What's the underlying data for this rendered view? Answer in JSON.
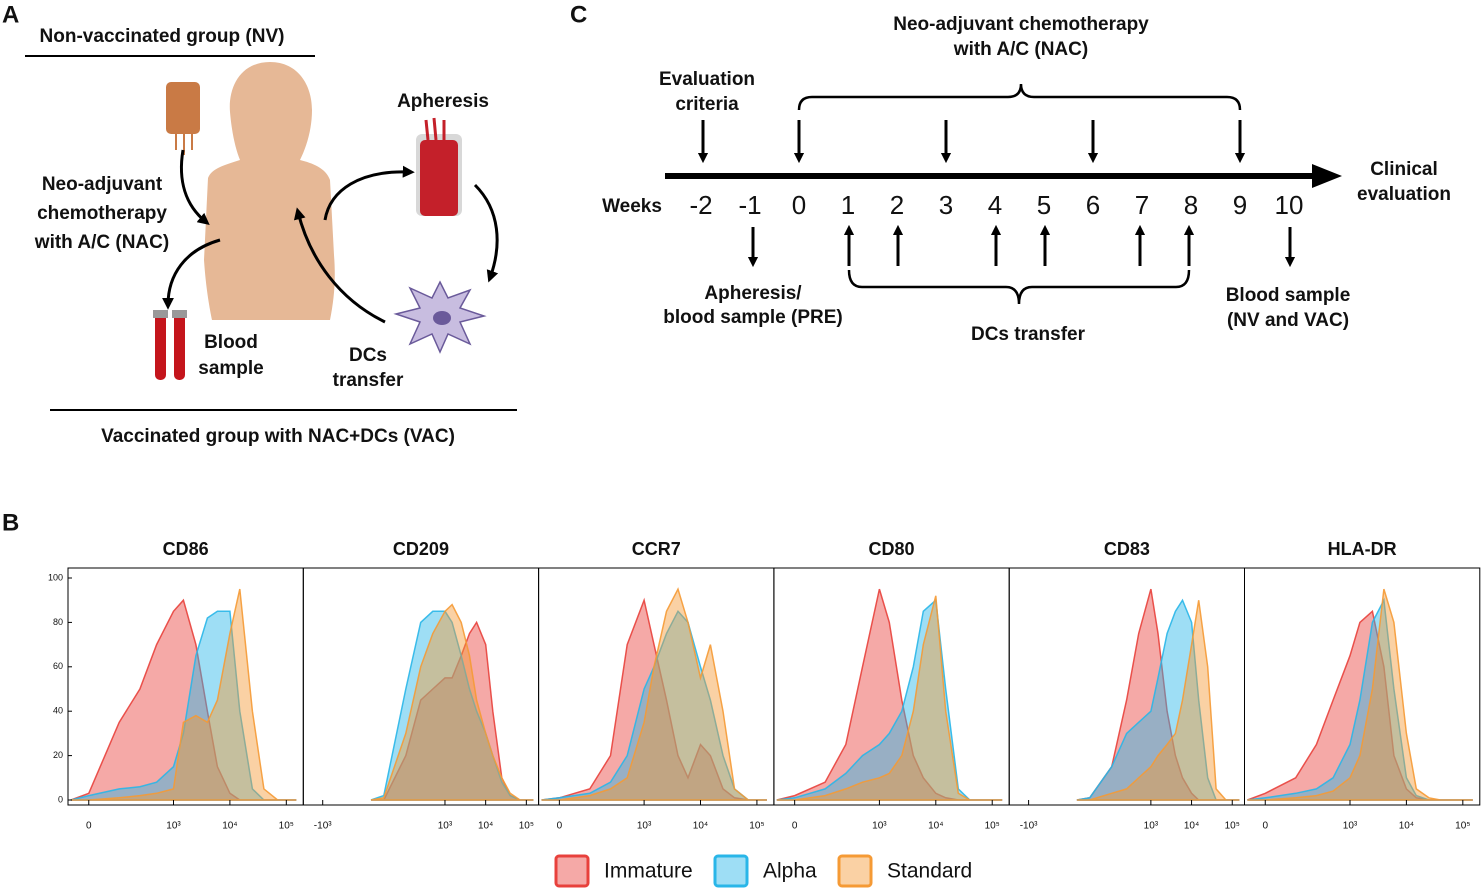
{
  "panel_a": {
    "letter": "A",
    "top_group": "Non-vaccinated group (NV)",
    "apheresis": "Apheresis",
    "nac_label": [
      "Neo-adjuvant",
      "chemotherapy",
      "with A/C (NAC)"
    ],
    "blood_label": [
      "Blood",
      "sample"
    ],
    "dcs_label": [
      "DCs",
      "transfer"
    ],
    "bottom_group": "Vaccinated group with NAC+DCs (VAC)"
  },
  "panel_c": {
    "letter": "C",
    "nac_label": [
      "Neo-adjuvant chemotherapy",
      "with A/C (NAC)"
    ],
    "evaluation_label": [
      "Evaluation",
      "criteria"
    ],
    "clinical_label": [
      "Clinical",
      "evaluation"
    ],
    "weeks_label": "Weeks",
    "weeks": [
      -2,
      -1,
      0,
      1,
      2,
      3,
      4,
      5,
      6,
      7,
      8,
      9,
      10
    ],
    "pre_label": [
      "Apheresis/",
      "blood sample (PRE)"
    ],
    "dcs_label": "DCs transfer",
    "post_label": [
      "Blood sample",
      "(NV and VAC)"
    ]
  },
  "panel_b": {
    "letter": "B"
  },
  "chart_data": [
    {
      "type": "area",
      "title": "CD86",
      "x": [
        -50,
        0,
        100,
        250,
        500,
        1000,
        1500,
        2500,
        4000,
        6000,
        10000,
        15000,
        25000,
        40000,
        70000,
        150000
      ],
      "xlim": [
        -60,
        200000
      ],
      "xticks": [
        0,
        {
          "value": 1000,
          "label": "10³"
        },
        {
          "value": 10000,
          "label": "10⁴"
        },
        {
          "value": 100000,
          "label": "10⁵"
        }
      ],
      "ylim": [
        0,
        100
      ],
      "yticks": [
        0,
        20,
        40,
        60,
        80,
        100
      ],
      "series": [
        {
          "name": "Immature",
          "color": "#e8413c",
          "values": [
            0,
            3,
            35,
            50,
            70,
            85,
            90,
            70,
            40,
            15,
            3,
            0,
            0,
            0,
            0,
            0
          ]
        },
        {
          "name": "Alpha",
          "color": "#29b6e8",
          "values": [
            0,
            2,
            5,
            6,
            8,
            15,
            30,
            65,
            82,
            85,
            85,
            40,
            5,
            0,
            0,
            0
          ]
        },
        {
          "name": "Standard",
          "color": "#f59a35",
          "values": [
            0,
            0,
            1,
            2,
            3,
            5,
            35,
            38,
            35,
            45,
            75,
            95,
            40,
            5,
            0,
            0
          ]
        }
      ]
    },
    {
      "type": "area",
      "title": "CD209",
      "x": [
        -50,
        0,
        100,
        250,
        500,
        1000,
        1500,
        2500,
        4000,
        6000,
        10000,
        15000,
        25000,
        40000,
        70000,
        150000
      ],
      "xlim": [
        -3000,
        200000
      ],
      "xticks": [
        {
          "value": -1000,
          "label": "-10³"
        },
        {
          "value": 1000,
          "label": "10³"
        },
        {
          "value": 10000,
          "label": "10⁴"
        },
        {
          "value": 100000,
          "label": "10⁵"
        }
      ],
      "ylim": [
        0,
        100
      ],
      "series": [
        {
          "name": "Immature",
          "color": "#e8413c",
          "values": [
            0,
            0,
            20,
            45,
            50,
            55,
            55,
            65,
            75,
            80,
            70,
            40,
            10,
            2,
            0,
            0
          ]
        },
        {
          "name": "Alpha",
          "color": "#29b6e8",
          "values": [
            0,
            2,
            50,
            80,
            85,
            85,
            80,
            65,
            50,
            40,
            30,
            20,
            8,
            2,
            0,
            0
          ]
        },
        {
          "name": "Standard",
          "color": "#f59a35",
          "values": [
            0,
            1,
            30,
            60,
            75,
            85,
            88,
            80,
            65,
            45,
            30,
            20,
            10,
            3,
            0,
            0
          ]
        }
      ]
    },
    {
      "type": "area",
      "title": "CCR7",
      "x": [
        -50,
        0,
        100,
        250,
        500,
        1000,
        1500,
        2500,
        4000,
        6000,
        10000,
        15000,
        25000,
        40000,
        70000,
        150000
      ],
      "xlim": [
        -60,
        200000
      ],
      "xticks": [
        0,
        {
          "value": 1000,
          "label": "10³"
        },
        {
          "value": 10000,
          "label": "10⁴"
        },
        {
          "value": 100000,
          "label": "10⁵"
        }
      ],
      "ylim": [
        0,
        100
      ],
      "series": [
        {
          "name": "Immature",
          "color": "#e8413c",
          "values": [
            0,
            1,
            5,
            20,
            70,
            90,
            70,
            45,
            20,
            10,
            25,
            20,
            5,
            1,
            0,
            0
          ]
        },
        {
          "name": "Alpha",
          "color": "#29b6e8",
          "values": [
            0,
            1,
            3,
            8,
            20,
            50,
            60,
            75,
            85,
            80,
            60,
            45,
            20,
            5,
            0,
            0
          ]
        },
        {
          "name": "Standard",
          "color": "#f59a35",
          "values": [
            0,
            0,
            2,
            5,
            10,
            35,
            60,
            85,
            95,
            80,
            55,
            70,
            40,
            5,
            0,
            0
          ]
        }
      ]
    },
    {
      "type": "area",
      "title": "CD80",
      "x": [
        -50,
        0,
        100,
        250,
        500,
        1000,
        1500,
        2500,
        4000,
        6000,
        10000,
        15000,
        25000,
        40000,
        70000,
        150000
      ],
      "xlim": [
        -60,
        200000
      ],
      "xticks": [
        0,
        {
          "value": 1000,
          "label": "10³"
        },
        {
          "value": 10000,
          "label": "10⁴"
        },
        {
          "value": 100000,
          "label": "10⁵"
        }
      ],
      "ylim": [
        0,
        100
      ],
      "series": [
        {
          "name": "Immature",
          "color": "#e8413c",
          "values": [
            0,
            2,
            8,
            25,
            60,
            95,
            80,
            45,
            20,
            10,
            3,
            1,
            0,
            0,
            0,
            0
          ]
        },
        {
          "name": "Alpha",
          "color": "#29b6e8",
          "values": [
            0,
            1,
            5,
            12,
            20,
            25,
            30,
            40,
            60,
            85,
            90,
            50,
            5,
            0,
            0,
            0
          ]
        },
        {
          "name": "Standard",
          "color": "#f59a35",
          "values": [
            0,
            0,
            2,
            5,
            8,
            10,
            12,
            20,
            40,
            70,
            92,
            40,
            3,
            0,
            0,
            0
          ]
        }
      ]
    },
    {
      "type": "area",
      "title": "CD83",
      "x": [
        -50,
        0,
        100,
        250,
        500,
        1000,
        1500,
        2500,
        4000,
        6000,
        10000,
        15000,
        25000,
        40000,
        70000,
        150000
      ],
      "xlim": [
        -3000,
        200000
      ],
      "xticks": [
        {
          "value": -1000,
          "label": "-10³"
        },
        {
          "value": 1000,
          "label": "10³"
        },
        {
          "value": 10000,
          "label": "10⁴"
        },
        {
          "value": 100000,
          "label": "10⁵"
        }
      ],
      "ylim": [
        0,
        100
      ],
      "series": [
        {
          "name": "Immature",
          "color": "#e8413c",
          "values": [
            0,
            1,
            15,
            45,
            75,
            95,
            75,
            40,
            20,
            10,
            3,
            0,
            0,
            0,
            0,
            0
          ]
        },
        {
          "name": "Alpha",
          "color": "#29b6e8",
          "values": [
            0,
            1,
            15,
            30,
            35,
            40,
            55,
            75,
            85,
            90,
            80,
            45,
            10,
            0,
            0,
            0
          ]
        },
        {
          "name": "Standard",
          "color": "#f59a35",
          "values": [
            0,
            0,
            3,
            5,
            10,
            15,
            20,
            25,
            30,
            45,
            70,
            90,
            60,
            5,
            0,
            0
          ]
        }
      ]
    },
    {
      "type": "area",
      "title": "HLA-DR",
      "x": [
        -50,
        0,
        100,
        250,
        500,
        1000,
        1500,
        2500,
        4000,
        6000,
        10000,
        15000,
        25000,
        40000,
        70000,
        150000
      ],
      "xlim": [
        -60,
        200000
      ],
      "xticks": [
        0,
        {
          "value": 1000,
          "label": "10³"
        },
        {
          "value": 10000,
          "label": "10⁴"
        },
        {
          "value": 100000,
          "label": "10⁵"
        }
      ],
      "ylim": [
        0,
        100
      ],
      "series": [
        {
          "name": "Immature",
          "color": "#e8413c",
          "values": [
            0,
            3,
            10,
            25,
            45,
            65,
            80,
            85,
            60,
            20,
            5,
            1,
            0,
            0,
            0,
            0
          ]
        },
        {
          "name": "Alpha",
          "color": "#29b6e8",
          "values": [
            0,
            1,
            3,
            5,
            10,
            25,
            45,
            80,
            90,
            50,
            10,
            2,
            0,
            0,
            0,
            0
          ]
        },
        {
          "name": "Standard",
          "color": "#f59a35",
          "values": [
            0,
            0,
            1,
            2,
            4,
            10,
            20,
            50,
            95,
            80,
            30,
            5,
            1,
            0,
            0,
            0
          ]
        }
      ]
    }
  ]
}
